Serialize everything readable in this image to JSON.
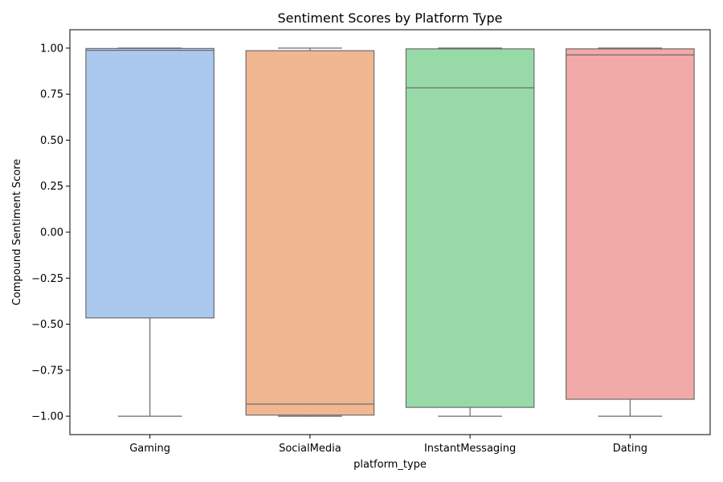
{
  "chart_data": {
    "type": "box",
    "title": "Sentiment Scores by Platform Type",
    "xlabel": "platform_type",
    "ylabel": "Compound Sentiment Score",
    "ylim": [
      -1.1,
      1.1
    ],
    "yticks": [
      "1.00",
      "0.75",
      "0.50",
      "0.25",
      "0.00",
      "−0.25",
      "−0.50",
      "−0.75",
      "−1.00"
    ],
    "ytick_values": [
      1.0,
      0.75,
      0.5,
      0.25,
      0.0,
      -0.25,
      -0.5,
      -0.75,
      -1.0
    ],
    "grid": false,
    "categories": [
      "Gaming",
      "SocialMedia",
      "InstantMessaging",
      "Dating"
    ],
    "boxes": [
      {
        "category": "Gaming",
        "whisker_low": -1.0,
        "q1": -0.466,
        "median": 0.988,
        "q3": 0.998,
        "whisker_high": 1.0,
        "color": "#abc9ee"
      },
      {
        "category": "SocialMedia",
        "whisker_low": -1.0,
        "q1": -0.994,
        "median": -0.934,
        "q3": 0.986,
        "whisker_high": 1.0,
        "color": "#f1b791"
      },
      {
        "category": "InstantMessaging",
        "whisker_low": -1.0,
        "q1": -0.952,
        "median": 0.784,
        "q3": 0.996,
        "whisker_high": 1.0,
        "color": "#98daa7"
      },
      {
        "category": "Dating",
        "whisker_low": -1.0,
        "q1": -0.908,
        "median": 0.963,
        "q3": 0.996,
        "whisker_high": 1.0,
        "color": "#f2aaa8"
      }
    ],
    "line_color": "#6b6b6b",
    "frame_color": "#000000"
  }
}
